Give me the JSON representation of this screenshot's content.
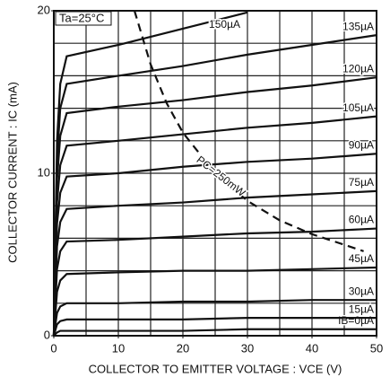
{
  "chart_data": {
    "type": "line",
    "xlabel": "COLLECTOR TO EMITTER VOLTAGE : VCE (V)",
    "ylabel": "COLLECTOR CURRENT : IC (mA)",
    "annotations": [
      "Ta=25°C",
      "PC=250mW"
    ],
    "xlim": [
      0,
      50
    ],
    "ylim": [
      0,
      20
    ],
    "xticks": [
      0,
      10,
      20,
      30,
      40,
      50
    ],
    "yticks": [
      0,
      10,
      20
    ],
    "xgrid": [
      0,
      5,
      10,
      15,
      20,
      25,
      30,
      35,
      40,
      45,
      50
    ],
    "ygrid": [
      0,
      2,
      4,
      6,
      8,
      10,
      12,
      14,
      16,
      18,
      20
    ],
    "grid": true,
    "x": [
      0,
      0.5,
      1,
      2,
      10,
      20,
      30,
      40,
      50
    ],
    "series": [
      {
        "name": "IB=0µA",
        "color": "#111",
        "values": [
          0,
          0.2,
          0.3,
          0.3,
          0.3,
          0.3,
          0.4,
          0.4,
          0.4
        ]
      },
      {
        "name": "15µA",
        "color": "#111",
        "values": [
          0,
          0.7,
          0.9,
          1.0,
          1.0,
          1.0,
          1.1,
          1.1,
          1.1
        ]
      },
      {
        "name": "30µA",
        "color": "#111",
        "values": [
          0,
          1.4,
          1.8,
          2.0,
          2.0,
          2.1,
          2.1,
          2.2,
          2.2
        ]
      },
      {
        "name": "45µA",
        "color": "#111",
        "values": [
          0,
          2.7,
          3.4,
          3.8,
          3.9,
          4.0,
          4.0,
          4.1,
          4.2
        ]
      },
      {
        "name": "60µA",
        "color": "#111",
        "values": [
          0,
          4.1,
          5.2,
          5.8,
          5.9,
          6.1,
          6.3,
          6.4,
          6.6
        ]
      },
      {
        "name": "75µA",
        "color": "#111",
        "values": [
          0,
          5.5,
          7.0,
          7.8,
          8.0,
          8.2,
          8.5,
          8.7,
          8.9
        ]
      },
      {
        "name": "90µA",
        "color": "#111",
        "values": [
          0,
          6.9,
          8.8,
          9.8,
          10.0,
          10.4,
          10.7,
          10.9,
          11.2
        ]
      },
      {
        "name": "105µA",
        "color": "#111",
        "values": [
          0,
          8.2,
          10.5,
          11.7,
          12.0,
          12.4,
          12.8,
          13.1,
          13.5
        ]
      },
      {
        "name": "120µA",
        "color": "#111",
        "values": [
          0,
          9.6,
          12.3,
          13.7,
          14.1,
          14.5,
          15.0,
          15.4,
          15.9
        ]
      },
      {
        "name": "135µA",
        "color": "#111",
        "values": [
          0,
          10.9,
          14.0,
          15.5,
          16.0,
          16.6,
          17.3,
          17.9,
          18.5
        ]
      },
      {
        "name": "150µA",
        "color": "#111",
        "values": [
          0,
          12.0,
          15.5,
          17.2,
          17.9,
          18.9,
          19.9,
          null,
          null
        ]
      }
    ],
    "pc_curve": {
      "dashed": true,
      "color": "#111",
      "x": [
        12.5,
        15,
        17.5,
        20,
        25,
        30,
        35,
        40,
        45,
        48
      ],
      "values": [
        20,
        16.7,
        14.3,
        12.5,
        10,
        8.3,
        7.1,
        6.25,
        5.6,
        5.2
      ]
    }
  }
}
